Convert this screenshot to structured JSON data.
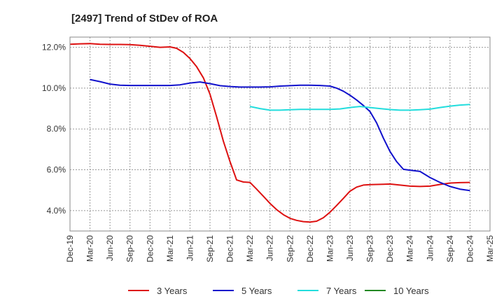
{
  "chart_data": {
    "type": "line",
    "title": "[2497]  Trend of StDev of ROA",
    "xlabel": "",
    "ylabel": "",
    "x_ticks": [
      "Dec-19",
      "Mar-20",
      "Jun-20",
      "Sep-20",
      "Dec-20",
      "Mar-21",
      "Jun-21",
      "Sep-21",
      "Dec-21",
      "Mar-22",
      "Jun-22",
      "Sep-22",
      "Dec-22",
      "Mar-23",
      "Jun-23",
      "Sep-23",
      "Dec-23",
      "Mar-24",
      "Jun-24",
      "Sep-24",
      "Dec-24",
      "Mar-25"
    ],
    "y_ticks": [
      "4.0%",
      "6.0%",
      "8.0%",
      "10.0%",
      "12.0%"
    ],
    "y_tick_values": [
      4,
      6,
      8,
      10,
      12
    ],
    "xlim": [
      0,
      21
    ],
    "ylim": [
      3,
      12.5
    ],
    "grid": true,
    "legend_position": "bottom",
    "series": [
      {
        "name": "3 Years",
        "color": "#dd1111",
        "x": [
          0,
          0.5,
          1,
          1.5,
          2,
          2.5,
          3,
          3.5,
          4,
          4.5,
          5,
          5.33,
          5.67,
          6,
          6.33,
          6.67,
          7,
          7.33,
          7.67,
          8,
          8.33,
          8.67,
          9,
          9.33,
          9.67,
          10,
          10.33,
          10.67,
          11,
          11.33,
          11.67,
          12,
          12.33,
          12.67,
          13,
          13.33,
          13.67,
          14,
          14.33,
          14.67,
          15,
          15.33,
          15.67,
          16,
          16.5,
          17,
          17.5,
          18,
          18.5,
          19,
          19.5,
          20
        ],
        "values": [
          12.15,
          12.17,
          12.18,
          12.15,
          12.14,
          12.14,
          12.13,
          12.1,
          12.05,
          12.0,
          12.02,
          11.95,
          11.75,
          11.45,
          11.05,
          10.5,
          9.7,
          8.6,
          7.4,
          6.4,
          5.5,
          5.4,
          5.38,
          5.05,
          4.7,
          4.35,
          4.05,
          3.8,
          3.62,
          3.52,
          3.46,
          3.44,
          3.48,
          3.65,
          3.92,
          4.25,
          4.6,
          4.95,
          5.15,
          5.25,
          5.27,
          5.28,
          5.29,
          5.3,
          5.25,
          5.2,
          5.18,
          5.2,
          5.28,
          5.35,
          5.37,
          5.38
        ]
      },
      {
        "name": "5 Years",
        "color": "#1111cc",
        "x": [
          1,
          1.5,
          2,
          2.5,
          3,
          3.5,
          4,
          4.5,
          5,
          5.5,
          6,
          6.5,
          7,
          7.5,
          8,
          8.5,
          9,
          9.5,
          10,
          10.5,
          11,
          11.5,
          12,
          12.5,
          13,
          13.33,
          13.67,
          14,
          14.33,
          14.67,
          15,
          15.33,
          15.67,
          16,
          16.33,
          16.67,
          17,
          17.5,
          18,
          18.5,
          19,
          19.5,
          20
        ],
        "values": [
          10.42,
          10.32,
          10.2,
          10.14,
          10.13,
          10.13,
          10.13,
          10.13,
          10.13,
          10.16,
          10.25,
          10.3,
          10.22,
          10.12,
          10.08,
          10.05,
          10.05,
          10.05,
          10.06,
          10.1,
          10.12,
          10.14,
          10.14,
          10.13,
          10.1,
          10.0,
          9.85,
          9.65,
          9.42,
          9.15,
          8.85,
          8.3,
          7.55,
          6.9,
          6.4,
          6.02,
          5.98,
          5.92,
          5.62,
          5.38,
          5.18,
          5.05,
          4.98
        ]
      },
      {
        "name": "7 Years",
        "color": "#22dddd",
        "x": [
          9,
          9.5,
          10,
          10.5,
          11,
          11.5,
          12,
          12.5,
          13,
          13.5,
          14,
          14.5,
          15,
          15.5,
          16,
          16.5,
          17,
          17.5,
          18,
          18.5,
          19,
          19.5,
          20
        ],
        "values": [
          9.1,
          9.0,
          8.92,
          8.92,
          8.94,
          8.96,
          8.96,
          8.96,
          8.96,
          8.98,
          9.05,
          9.1,
          9.05,
          9.0,
          8.95,
          8.92,
          8.92,
          8.94,
          8.97,
          9.05,
          9.12,
          9.17,
          9.2
        ]
      },
      {
        "name": "10 Years",
        "color": "#228822",
        "x": [],
        "values": []
      }
    ]
  }
}
